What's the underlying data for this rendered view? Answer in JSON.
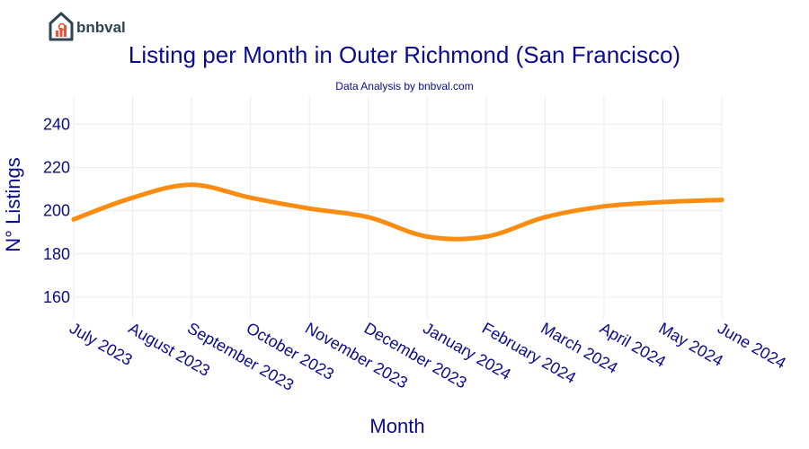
{
  "brand": {
    "name": "bnbval"
  },
  "colors": {
    "line": "#fb8c12",
    "text": "#0b0b8c",
    "grid": "#ececec",
    "logo": "#2d4550",
    "logo_accent": "#e8533a"
  },
  "chart_data": {
    "type": "line",
    "title": "Listing per Month in Outer Richmond (San Francisco)",
    "subtitle": "Data Analysis by bnbval.com",
    "xlabel": "Month",
    "ylabel": "N° Listings",
    "categories": [
      "July 2023",
      "August 2023",
      "September 2023",
      "October 2023",
      "November 2023",
      "December 2023",
      "January 2024",
      "February 2024",
      "March 2024",
      "April 2024",
      "May 2024",
      "June 2024"
    ],
    "series": [
      {
        "values": [
          196,
          206,
          212,
          206,
          201,
          197,
          188,
          188,
          197,
          202,
          204,
          205
        ]
      }
    ],
    "yticks": [
      160,
      180,
      200,
      220,
      240
    ],
    "ylim": [
      150,
      253
    ],
    "grid": true,
    "line_shape": "smooth"
  }
}
